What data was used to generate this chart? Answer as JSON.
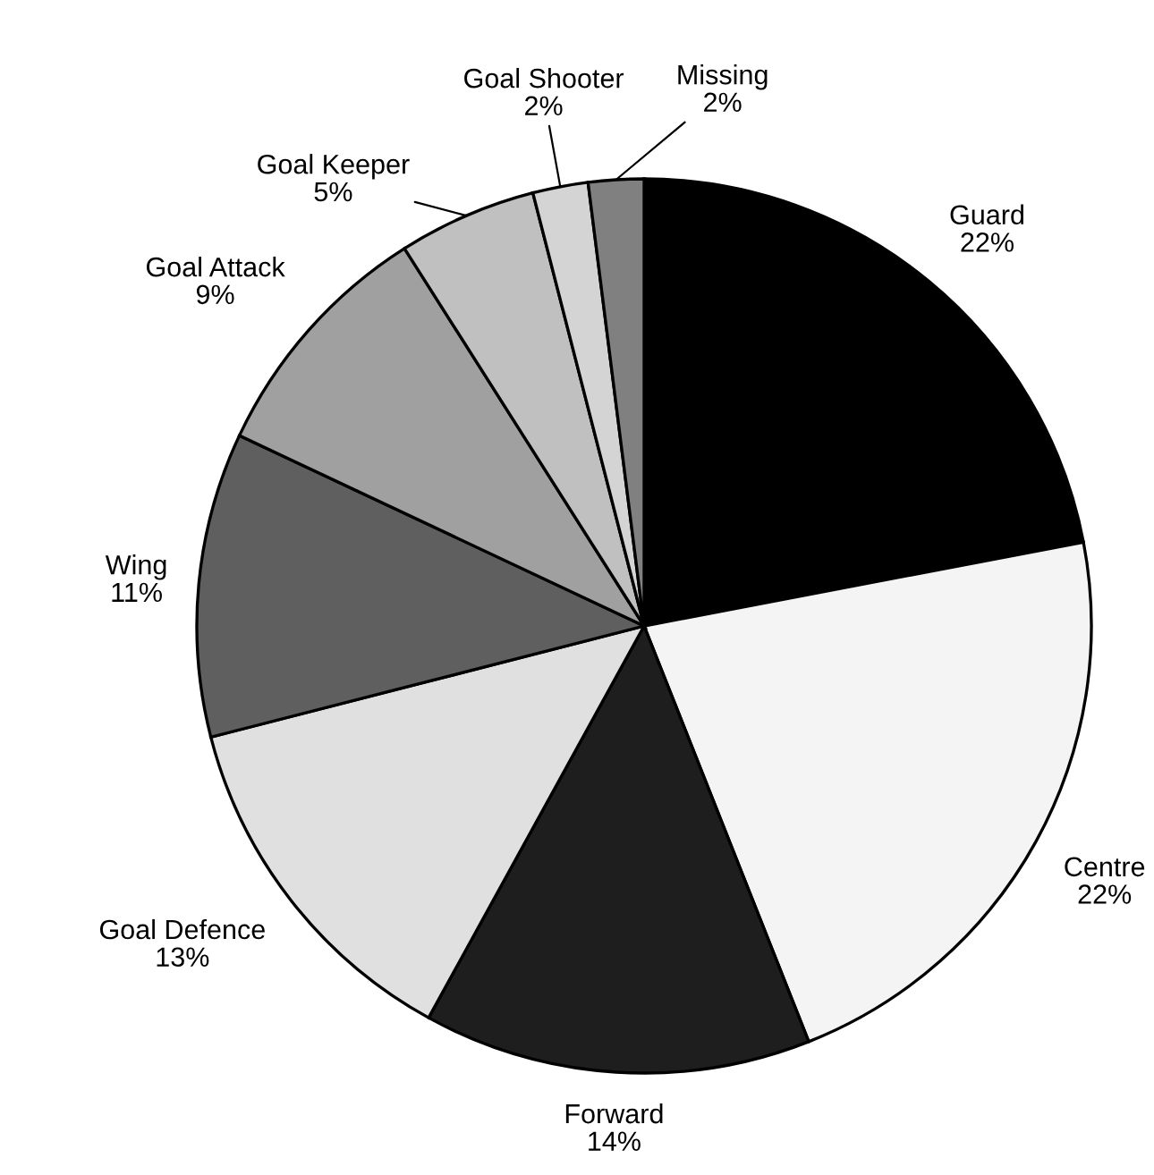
{
  "chart_data": {
    "type": "pie",
    "categories": [
      "Guard",
      "Centre",
      "Forward",
      "Goal Defence",
      "Wing",
      "Goal Attack",
      "Goal Keeper",
      "Goal Shooter",
      "Missing"
    ],
    "values": [
      22,
      22,
      14,
      13,
      11,
      9,
      5,
      2,
      2
    ],
    "value_labels": [
      "22%",
      "22%",
      "14%",
      "13%",
      "11%",
      "9%",
      "5%",
      "2%",
      "2%"
    ],
    "colors": [
      "#000000",
      "#f4f4f4",
      "#1e1e1e",
      "#e0e0e0",
      "#5f5f5f",
      "#a0a0a0",
      "#c0c0c0",
      "#d4d4d4",
      "#808080"
    ]
  }
}
